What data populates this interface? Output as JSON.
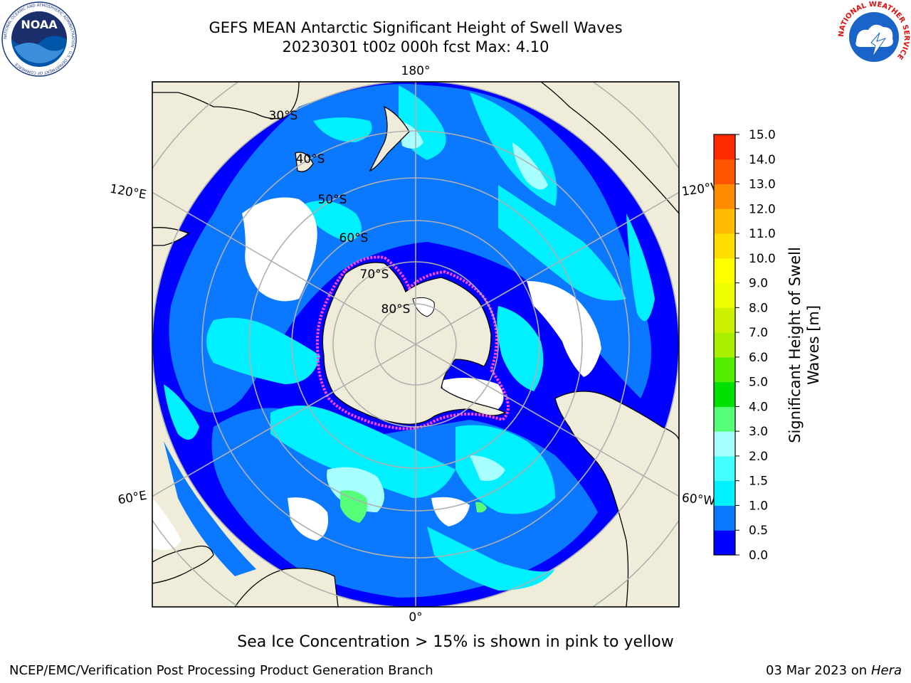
{
  "header": {
    "title": "GEFS MEAN Antarctic Significant Height of Swell Waves",
    "subtitle": "20230301 t00z 000h fcst   Max: 4.10"
  },
  "logos": {
    "noaa_text": "NOAA",
    "noaa_ring_text": "NATIONAL OCEANIC AND ATMOSPHERIC ADMINISTRATION · U.S. DEPARTMENT OF COMMERCE",
    "nws_ring_text": "NATIONAL WEATHER SERVICE"
  },
  "map": {
    "projection": "south-polar-stereographic",
    "lon_labels": {
      "top": "180°",
      "bottom": "0°",
      "left_upper": "120°E",
      "left_lower": "60°E",
      "right_upper": "120°W",
      "right_lower": "60°W"
    },
    "lat_labels": [
      "30°S",
      "40°S",
      "50°S",
      "60°S",
      "70°S",
      "80°S"
    ],
    "colors": {
      "land": "#efedda",
      "ice": "#ffffff",
      "ocean_deep": "#0000ff",
      "ocean_mid": "#0a78ff",
      "ocean_light": "#00ffff",
      "sea_ice_edge": "#ff44dd",
      "graticule": "#b0b0b0"
    }
  },
  "colorbar": {
    "label_line1": "Significant Height of Swell",
    "label_line2": "Waves [m]",
    "ticks": [
      "0.0",
      "0.5",
      "1.0",
      "1.5",
      "2.0",
      "3.0",
      "4.0",
      "5.0",
      "6.0",
      "7.0",
      "8.0",
      "9.0",
      "10.0",
      "11.0",
      "12.0",
      "13.0",
      "14.0",
      "15.0"
    ],
    "colors": [
      "#0000ff",
      "#0a78ff",
      "#00f0ff",
      "#44ffff",
      "#a8ffff",
      "#55ff77",
      "#00e000",
      "#55ee00",
      "#aaee00",
      "#ccf000",
      "#eeff00",
      "#ffff00",
      "#ffdd00",
      "#ffbb00",
      "#ff8c00",
      "#ff5500",
      "#ff2a00",
      "#ff0000"
    ]
  },
  "notes": {
    "sea_ice": "Sea Ice Concentration > 15% is shown in pink to yellow"
  },
  "footer": {
    "left": "NCEP/EMC/Verification Post Processing Product Generation Branch",
    "date": "03 Mar 2023 on",
    "machine": "Hera"
  }
}
